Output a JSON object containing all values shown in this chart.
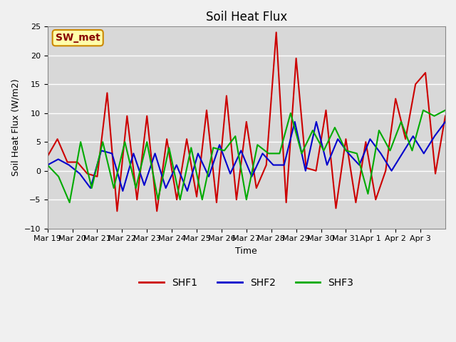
{
  "title": "Soil Heat Flux",
  "ylabel": "Soil Heat Flux (W/m2)",
  "xlabel": "Time",
  "ylim": [
    -10,
    25
  ],
  "fig_bg_color": "#f0f0f0",
  "plot_bg_color": "#d8d8d8",
  "grid_color": "white",
  "shf1_color": "#cc0000",
  "shf2_color": "#0000cc",
  "shf3_color": "#00aa00",
  "annotation_text": "SW_met",
  "annotation_bg": "#ffffaa",
  "annotation_border": "#cc8800",
  "annotation_text_color": "#880000",
  "legend_labels": [
    "SHF1",
    "SHF2",
    "SHF3"
  ],
  "yticks": [
    -10,
    -5,
    0,
    5,
    10,
    15,
    20,
    25
  ],
  "x_tick_labels": [
    "Mar 19",
    "Mar 20",
    "Mar 21",
    "Mar 22",
    "Mar 23",
    "Mar 24",
    "Mar 25",
    "Mar 26",
    "Mar 27",
    "Mar 28",
    "Mar 29",
    "Mar 30",
    "Mar 31",
    "Apr 1",
    "Apr 2",
    "Apr 3"
  ],
  "n_days": 16,
  "shf1_values": [
    2.5,
    5.5,
    1.5,
    1.5,
    -0.5,
    -1.0,
    13.5,
    -7.0,
    9.5,
    -5.0,
    9.5,
    -7.0,
    5.5,
    -5.0,
    5.5,
    -4.5,
    10.5,
    -5.5,
    13.0,
    -5.0,
    8.5,
    -3.0,
    1.0,
    24.0,
    -5.5,
    19.5,
    0.5,
    0.0,
    10.5,
    -6.5,
    5.5,
    -5.5,
    5.0,
    -5.0,
    0.0,
    12.5,
    5.5,
    15.0,
    17.0,
    -0.5,
    9.5
  ],
  "shf2_values": [
    1.0,
    2.0,
    1.0,
    -0.5,
    -3.0,
    3.5,
    3.0,
    -3.5,
    3.0,
    -2.5,
    3.0,
    -3.0,
    1.0,
    -3.5,
    3.0,
    -1.0,
    4.5,
    -0.5,
    3.5,
    -1.0,
    3.0,
    1.0,
    1.0,
    8.5,
    0.0,
    8.5,
    1.0,
    5.5,
    3.0,
    1.0,
    5.5,
    3.0,
    0.0,
    3.0,
    6.0,
    3.0,
    6.0,
    8.5
  ],
  "shf3_values": [
    1.0,
    -1.0,
    -5.5,
    5.0,
    -3.0,
    5.0,
    -3.0,
    5.0,
    -3.0,
    5.0,
    -5.0,
    4.0,
    -5.0,
    4.0,
    -5.0,
    4.0,
    3.5,
    6.0,
    -5.0,
    4.5,
    3.0,
    3.0,
    10.0,
    3.0,
    7.0,
    3.5,
    7.5,
    3.5,
    3.0,
    -4.0,
    7.0,
    3.5,
    8.5,
    3.5,
    10.5,
    9.5,
    10.5
  ],
  "line_width": 1.5
}
